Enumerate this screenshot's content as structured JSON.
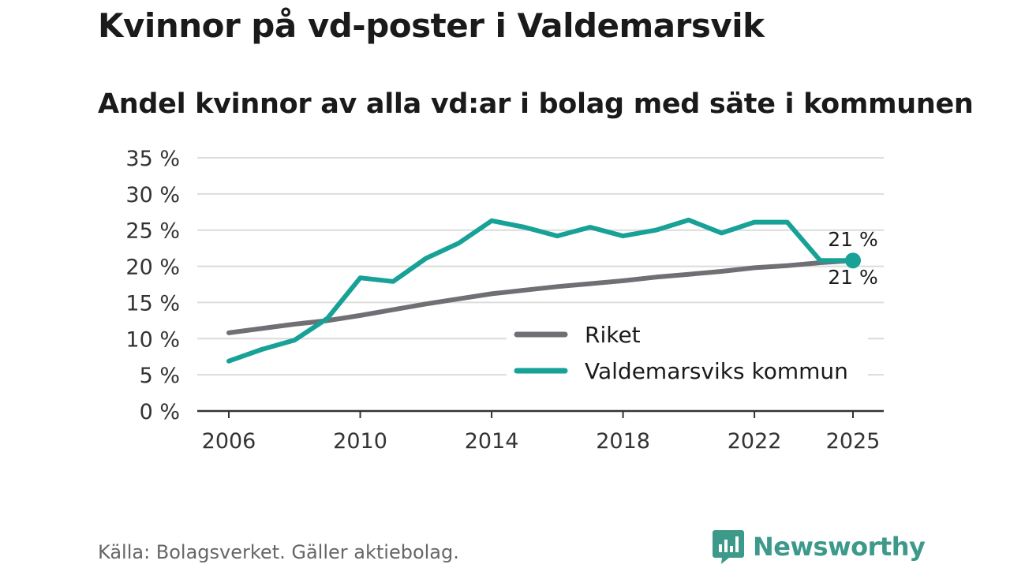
{
  "title": "Kvinnor på vd-poster i Valdemarsvik",
  "subtitle": "Andel kvinnor av alla vd:ar i bolag med säte i kommunen",
  "source": "Källa: Bolagsverket. Gäller aktiebolag.",
  "brand": {
    "name": "Newsworthy",
    "icon": "newsworthy-logo-icon",
    "color": "#3d9a8b"
  },
  "chart_data": {
    "type": "line",
    "title": "Kvinnor på vd-poster i Valdemarsvik",
    "subtitle": "Andel kvinnor av alla vd:ar i bolag med säte i kommunen",
    "xlabel": "",
    "ylabel": "",
    "x": [
      2006,
      2007,
      2008,
      2009,
      2010,
      2011,
      2012,
      2013,
      2014,
      2015,
      2016,
      2017,
      2018,
      2019,
      2020,
      2021,
      2022,
      2023,
      2024,
      2025
    ],
    "xticks": [
      2006,
      2010,
      2014,
      2018,
      2022,
      2025
    ],
    "xtick_labels": [
      "2006",
      "2010",
      "2014",
      "2018",
      "2022",
      "2025"
    ],
    "xlim": [
      2006,
      2025
    ],
    "ylim": [
      0,
      35
    ],
    "yticks": [
      0,
      5,
      10,
      15,
      20,
      25,
      30,
      35
    ],
    "ytick_labels": [
      "0 %",
      "5 %",
      "10 %",
      "15 %",
      "20 %",
      "25 %",
      "30 %",
      "35 %"
    ],
    "grid": true,
    "legend_position": "bottom-right",
    "series": [
      {
        "name": "Riket",
        "color": "#706f74",
        "values": [
          10.8,
          11.4,
          12.0,
          12.5,
          13.2,
          14.0,
          14.8,
          15.5,
          16.2,
          16.7,
          17.2,
          17.6,
          18.0,
          18.5,
          18.9,
          19.3,
          19.8,
          20.1,
          20.5,
          20.8
        ],
        "end_label": "21 %"
      },
      {
        "name": "Valdemarsviks kommun",
        "color": "#17a197",
        "values": [
          6.9,
          8.5,
          9.8,
          12.8,
          18.4,
          17.9,
          21.1,
          23.2,
          26.3,
          25.4,
          24.2,
          25.4,
          24.2,
          25.0,
          26.4,
          24.6,
          26.1,
          26.1,
          20.8,
          20.8
        ],
        "end_label": "21 %"
      }
    ]
  }
}
